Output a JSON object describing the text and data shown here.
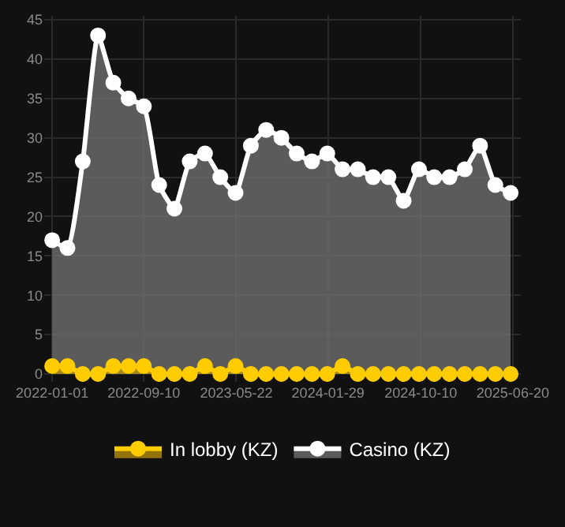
{
  "chart_data": {
    "type": "area",
    "x": [
      "2022-01-01",
      "2022-02-12",
      "2022-03-26",
      "2022-05-07",
      "2022-06-18",
      "2022-07-30",
      "2022-09-10",
      "2022-10-22",
      "2022-12-03",
      "2023-01-14",
      "2023-02-25",
      "2023-04-08",
      "2023-05-20",
      "2023-07-01",
      "2023-08-12",
      "2023-09-23",
      "2023-11-04",
      "2023-12-16",
      "2024-01-27",
      "2024-03-09",
      "2024-04-20",
      "2024-06-01",
      "2024-07-13",
      "2024-08-24",
      "2024-10-05",
      "2024-11-16",
      "2024-12-28",
      "2025-02-08",
      "2025-03-22",
      "2025-05-03",
      "2025-06-14"
    ],
    "series": [
      {
        "name": "In lobby (KZ)",
        "color": "#ffcc00",
        "values": [
          1,
          1,
          0,
          0,
          1,
          1,
          1,
          0,
          0,
          0,
          1,
          0,
          1,
          0,
          0,
          0,
          0,
          0,
          0,
          1,
          0,
          0,
          0,
          0,
          0,
          0,
          0,
          0,
          0,
          0,
          0
        ]
      },
      {
        "name": "Casino (KZ)",
        "color": "#ffffff",
        "values": [
          17,
          16,
          27,
          43,
          37,
          35,
          34,
          24,
          21,
          27,
          28,
          25,
          23,
          29,
          31,
          30,
          28,
          27,
          28,
          26,
          26,
          25,
          25,
          22,
          26,
          25,
          25,
          26,
          29,
          24,
          23
        ]
      }
    ],
    "xlim": [
      "2021-12-10",
      "2025-07-12"
    ],
    "xticks": [
      {
        "value": "2022-01-01",
        "label": "2022-01-01"
      },
      {
        "value": "2022-09-10",
        "label": "2022-09-10"
      },
      {
        "value": "2023-05-22",
        "label": "2023-05-22"
      },
      {
        "value": "2024-01-29",
        "label": "2024-01-29"
      },
      {
        "value": "2024-10-10",
        "label": "2024-10-10"
      },
      {
        "value": "2025-06-20",
        "label": "2025-06-20"
      }
    ],
    "ylim": [
      -1,
      45.5
    ],
    "yticks": [
      0,
      5,
      10,
      15,
      20,
      25,
      30,
      35,
      40,
      45
    ],
    "grid": true,
    "legend": "bottom",
    "marker": "circle",
    "line_style": "solid"
  }
}
